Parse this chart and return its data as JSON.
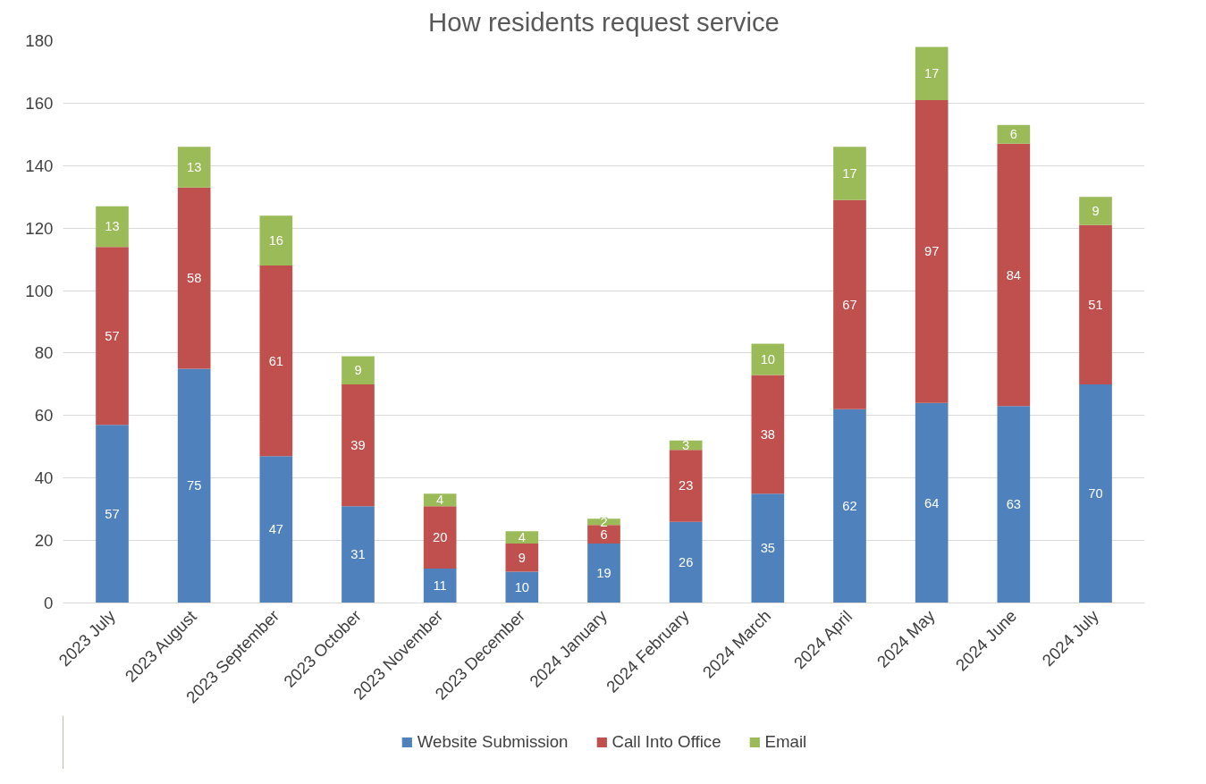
{
  "chart_data": {
    "type": "bar",
    "title": "How residents request service",
    "stacked": true,
    "data_labels": true,
    "grid": "y",
    "legend": "bottom",
    "categories": [
      "2023 July",
      "2023 August",
      "2023 September",
      "2023 October",
      "2023 November",
      "2023 December",
      "2024 January",
      "2024 February",
      "2024 March",
      "2024 April",
      "2024 May",
      "2024 June",
      "2024 July"
    ],
    "ylim": [
      0,
      180
    ],
    "yticks": [
      0,
      20,
      40,
      60,
      80,
      100,
      120,
      140,
      160,
      180
    ],
    "series": [
      {
        "name": "Website Submission",
        "color": "#4f81bd",
        "values": [
          57,
          75,
          47,
          31,
          11,
          10,
          19,
          26,
          35,
          62,
          64,
          63,
          70
        ]
      },
      {
        "name": "Call Into Office",
        "color": "#c0504d",
        "values": [
          57,
          58,
          61,
          39,
          20,
          9,
          6,
          23,
          38,
          67,
          97,
          84,
          51
        ]
      },
      {
        "name": "Email",
        "color": "#9bbb59",
        "values": [
          13,
          13,
          16,
          9,
          4,
          4,
          2,
          3,
          10,
          17,
          17,
          6,
          9
        ]
      }
    ]
  }
}
